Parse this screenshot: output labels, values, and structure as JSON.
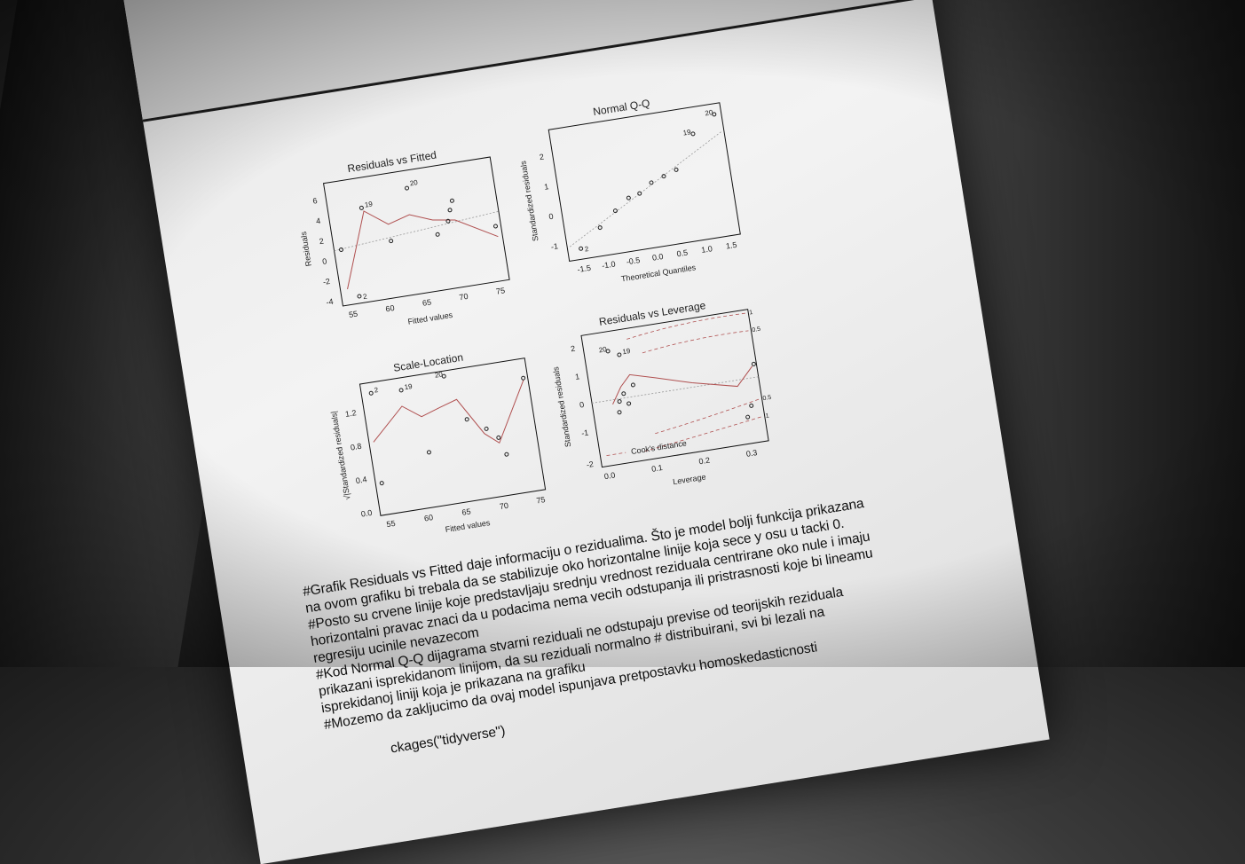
{
  "plots": [
    {
      "title": "Residuals vs Fitted",
      "xlabel": "Fitted values",
      "ylabel": "Residuals",
      "xticks": [
        "55",
        "60",
        "65",
        "70",
        "75"
      ],
      "yticks": [
        "-4",
        "-2",
        "0",
        "2",
        "4",
        "6"
      ],
      "point_labels": [
        "19",
        "20",
        "2"
      ]
    },
    {
      "title": "Normal Q-Q",
      "xlabel": "Theoretical Quantiles",
      "ylabel": "Standardized residuals",
      "xticks": [
        "-1.5",
        "-1.0",
        "-0.5",
        "0.0",
        "0.5",
        "1.0",
        "1.5"
      ],
      "yticks": [
        "-1",
        "0",
        "1",
        "2"
      ],
      "point_labels": [
        "20",
        "19",
        "2"
      ]
    },
    {
      "title": "Scale-Location",
      "xlabel": "Fitted values",
      "ylabel": "√|Standardized residuals|",
      "xticks": [
        "55",
        "60",
        "65",
        "70",
        "75"
      ],
      "yticks": [
        "0.0",
        "0.4",
        "0.8",
        "1.2"
      ],
      "point_labels": [
        "2",
        "19",
        "20"
      ]
    },
    {
      "title": "Residuals vs Leverage",
      "xlabel": "Leverage",
      "ylabel": "Standardized residuals",
      "xticks": [
        "0.0",
        "0.1",
        "0.2",
        "0.3"
      ],
      "yticks": [
        "-2",
        "-1",
        "0",
        "1",
        "2"
      ],
      "point_labels": [
        "20",
        "19"
      ],
      "legend": "Cook's distance",
      "contour_labels": [
        "1",
        "0.5",
        "0.5",
        "1"
      ]
    }
  ],
  "text_lines": [
    "#Grafik Residuals vs Fitted daje informaciju o rezidualima. Što je model bolji funkcija prikazana",
    "na ovom grafiku bi trebala da se stabilizuje oko horizontalne linije koja sece y osu u tacki 0.",
    "#Posto su crvene linije koje predstavljaju srednju vrednost reziduala centrirane oko nule i imaju",
    "horizontalni pravac znaci da u podacima nema vecih odstupanja ili pristrasnosti koje bi lineamu",
    "regresiju ucinile nevazecom",
    "#Kod Normal Q-Q dijagrama stvarni reziduali ne odstupaju previse od teorijskih reziduala",
    "prikazani isprekidanom linijom, da su reziduali normalno # distribuirani, svi bi lezali na",
    "isprekidanoj liniji koja je prikazana na grafiku",
    "#Mozemo da zakljucimo da ovaj model ispunjava pretpostavku homoskedasticnosti",
    "",
    "ckages(\"tidyverse\")"
  ]
}
